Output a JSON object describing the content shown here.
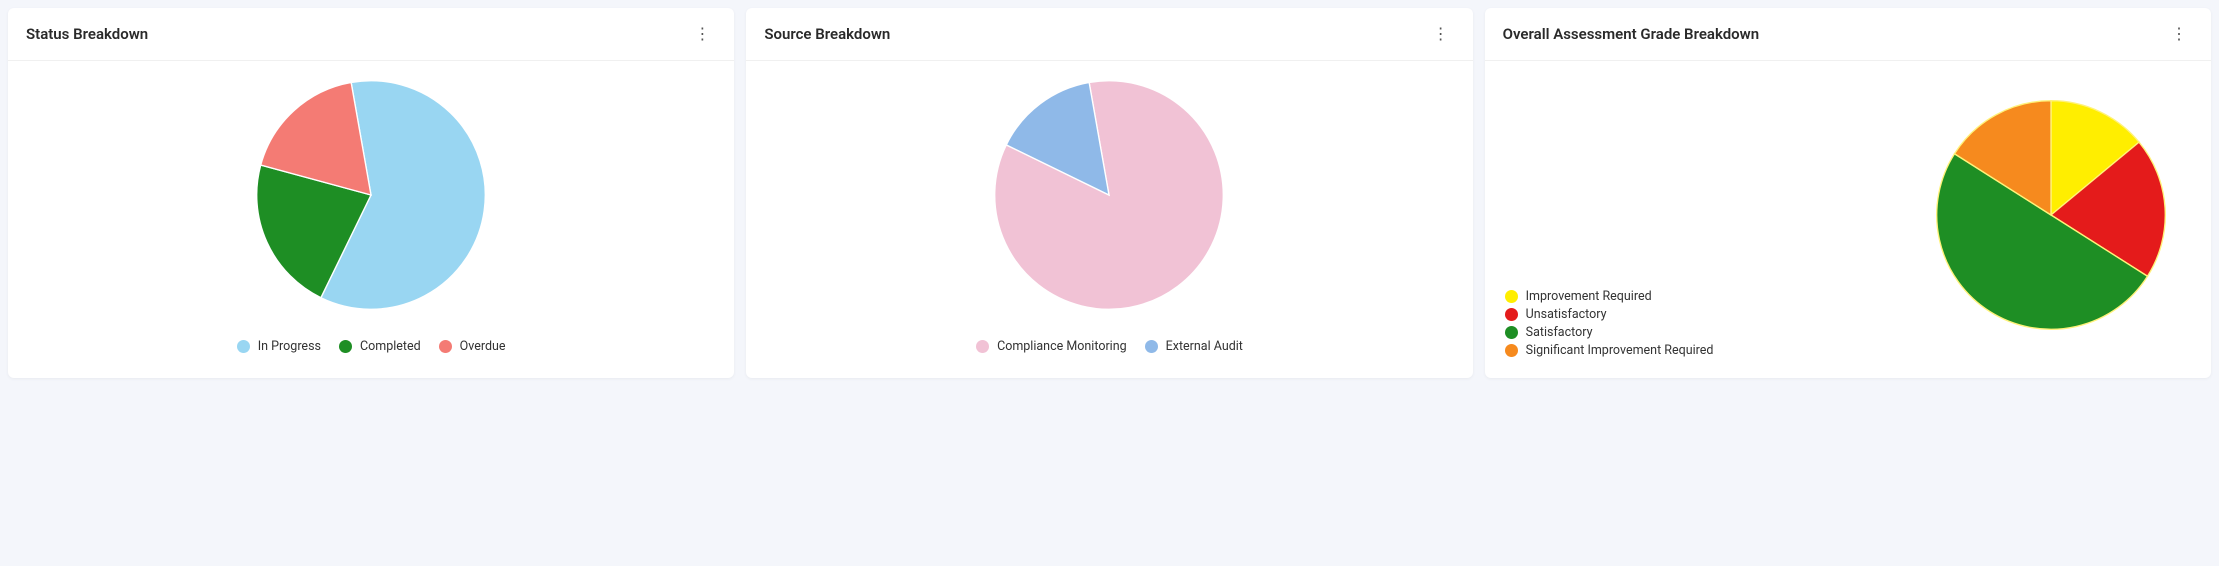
{
  "background_color": "#f4f6fb",
  "card_background": "#ffffff",
  "cards": [
    {
      "id": "status",
      "title": "Status Breakdown",
      "chart": {
        "type": "pie",
        "start_angle_offset_deg": -10,
        "slice_border": "#ffffff",
        "legend_layout": "horizontal",
        "slices": [
          {
            "label": "In Progress",
            "value": 60,
            "color": "#99d6f2"
          },
          {
            "label": "Completed",
            "value": 22,
            "color": "#1e8e24"
          },
          {
            "label": "Overdue",
            "value": 18,
            "color": "#f47b74"
          }
        ]
      }
    },
    {
      "id": "source",
      "title": "Source Breakdown",
      "chart": {
        "type": "pie",
        "start_angle_offset_deg": -10,
        "slice_border": "#ffffff",
        "legend_layout": "horizontal",
        "slices": [
          {
            "label": "Compliance Monitoring",
            "value": 85,
            "color": "#f1c2d5"
          },
          {
            "label": "External Audit",
            "value": 15,
            "color": "#8fb9e8"
          }
        ]
      }
    },
    {
      "id": "grade",
      "title": "Overall Assessment Grade Breakdown",
      "chart": {
        "type": "pie",
        "start_angle_offset_deg": 0,
        "slice_border": "#fff27a",
        "legend_layout": "vertical",
        "legend_order": [
          "Improvement Required",
          "Unsatisfactory",
          "Satisfactory",
          "Significant Improvement Required"
        ],
        "slices": [
          {
            "label": "Improvement Required",
            "value": 14,
            "color": "#ffee00"
          },
          {
            "label": "Unsatisfactory",
            "value": 20,
            "color": "#e41b1b"
          },
          {
            "label": "Satisfactory",
            "value": 50,
            "color": "#1e8e24"
          },
          {
            "label": "Significant Improvement Required",
            "value": 16,
            "color": "#f68a1e"
          }
        ]
      }
    }
  ]
}
